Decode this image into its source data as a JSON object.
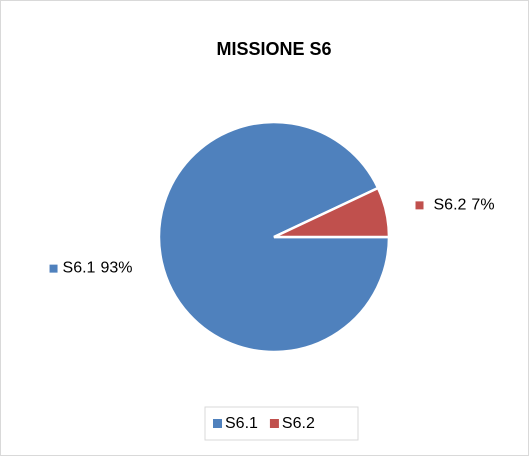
{
  "chart_data": {
    "type": "pie",
    "title": "MISSIONE S6",
    "categories": [
      "S6.1",
      "S6.2"
    ],
    "values": [
      93,
      7
    ],
    "value_labels": [
      "93%",
      "7%"
    ],
    "colors": [
      "#4f81bd",
      "#c0504d"
    ],
    "legend": "bottom"
  }
}
